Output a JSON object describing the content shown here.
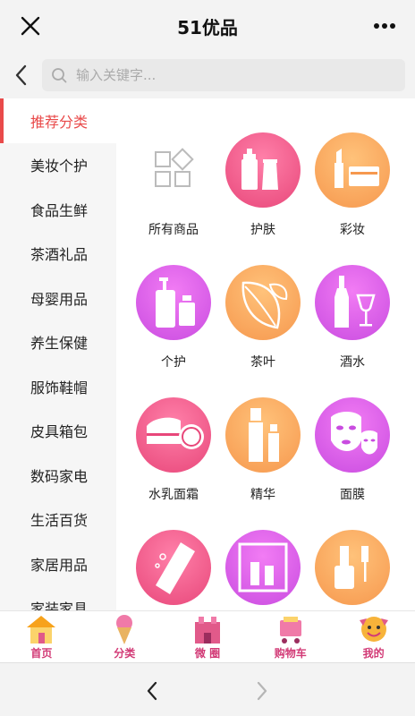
{
  "header": {
    "title": "51优品"
  },
  "search": {
    "placeholder": "输入关键字..."
  },
  "sidebar": {
    "items": [
      {
        "label": "推荐分类"
      },
      {
        "label": "美妆个护"
      },
      {
        "label": "食品生鲜"
      },
      {
        "label": "茶酒礼品"
      },
      {
        "label": "母婴用品"
      },
      {
        "label": "养生保健"
      },
      {
        "label": "服饰鞋帽"
      },
      {
        "label": "皮具箱包"
      },
      {
        "label": "数码家电"
      },
      {
        "label": "生活百货"
      },
      {
        "label": "家居用品"
      },
      {
        "label": "家装家具"
      }
    ]
  },
  "categories": [
    {
      "label": "所有商品"
    },
    {
      "label": "护肤"
    },
    {
      "label": "彩妆"
    },
    {
      "label": "个护"
    },
    {
      "label": "茶叶"
    },
    {
      "label": "酒水"
    },
    {
      "label": "水乳面霜"
    },
    {
      "label": "精华"
    },
    {
      "label": "面膜"
    },
    {
      "label": ""
    },
    {
      "label": ""
    },
    {
      "label": ""
    }
  ],
  "tabbar": {
    "home": "首页",
    "category": "分类",
    "circle": "微 圈",
    "cart": "购物车",
    "mine": "我的"
  },
  "colors": {
    "accent": "#e94a4a",
    "tab_text": "#d23a76"
  }
}
